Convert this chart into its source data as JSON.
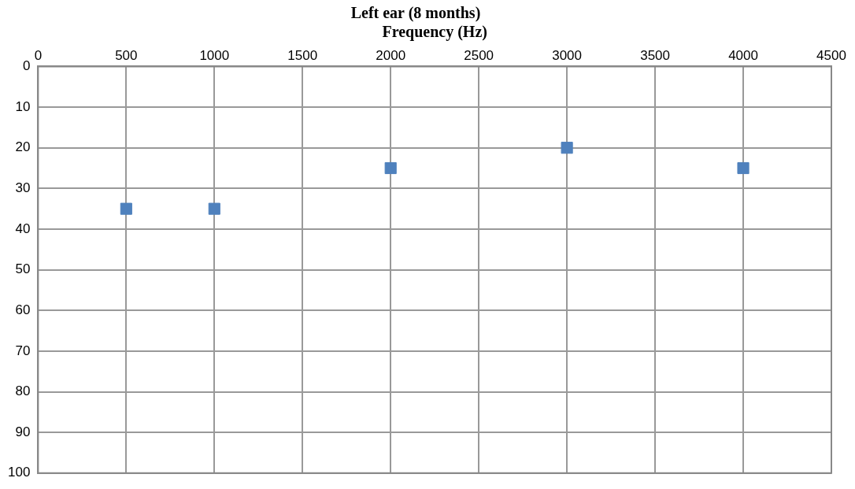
{
  "chart_data": {
    "type": "scatter",
    "title": "Left ear (8 months)",
    "xlabel": "Frequency (Hz)",
    "x": [
      500,
      1000,
      2000,
      3000,
      4000
    ],
    "series": [
      {
        "color": "#4f81bd",
        "values": [
          35,
          35,
          25,
          20,
          25
        ]
      }
    ],
    "xlim": [
      0,
      4500
    ],
    "xticks": [
      0,
      500,
      1000,
      1500,
      2000,
      2500,
      3000,
      3500,
      4000,
      4500
    ],
    "ylim": [
      100,
      0
    ],
    "yticks": [
      0,
      10,
      20,
      30,
      40,
      50,
      60,
      70,
      80,
      90,
      100
    ],
    "grid": true,
    "legend": false,
    "marker": "square"
  }
}
